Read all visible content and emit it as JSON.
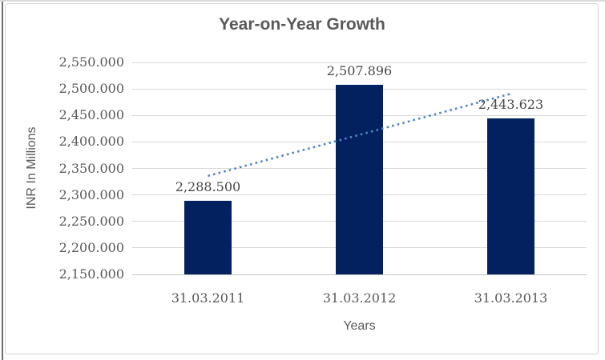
{
  "chart_data": {
    "type": "bar",
    "title": "Year-on-Year Growth",
    "xlabel": "Years",
    "ylabel": "INR In Millions",
    "categories": [
      "31.03.2011",
      "31.03.2012",
      "31.03.2013"
    ],
    "values": [
      2288.5,
      2507.896,
      2443.623
    ],
    "data_labels": [
      "2,288.500",
      "2,507.896",
      "2,443.623"
    ],
    "ylim": [
      2150,
      2550
    ],
    "ytick_step": 50,
    "ytick_labels": [
      "2,550.000",
      "2,500.000",
      "2,450.000",
      "2,400.000",
      "2,350.000",
      "2,300.000",
      "2,250.000",
      "2,200.000",
      "2,150.000"
    ],
    "grid": true,
    "legend": false,
    "bar_color": "#02215e",
    "trendline": {
      "type": "linear",
      "style": "dotted",
      "color": "#4e86c6",
      "endpoint_values": [
        2335.8,
        2490.9
      ]
    }
  }
}
